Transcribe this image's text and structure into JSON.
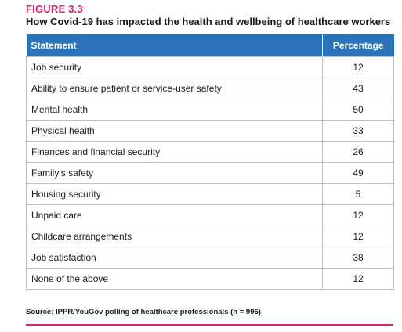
{
  "figure": {
    "label": "FIGURE 3.3",
    "title": "How Covid-19 has impacted the health and wellbeing of healthcare workers",
    "source": "Source: IPPR/YouGov polling of healthcare professionals (n = 996)"
  },
  "colors": {
    "accent": "#d6246e",
    "header_bg": "#2b73b8",
    "header_text": "#ffffff",
    "grid": "#bfbfbf"
  },
  "chart_data": {
    "type": "table",
    "title": "How Covid-19 has impacted the health and wellbeing of healthcare workers",
    "columns": [
      "Statement",
      "Percentage"
    ],
    "categories": [
      "Job security",
      "Ability to ensure patient or service-user safety",
      "Mental health",
      "Physical health",
      "Finances and financial security",
      "Family’s safety",
      "Housing security",
      "Unpaid care",
      "Childcare arrangements",
      "Job satisfaction",
      "None of the above"
    ],
    "values": [
      12,
      43,
      50,
      33,
      26,
      49,
      5,
      12,
      12,
      38,
      12
    ]
  }
}
